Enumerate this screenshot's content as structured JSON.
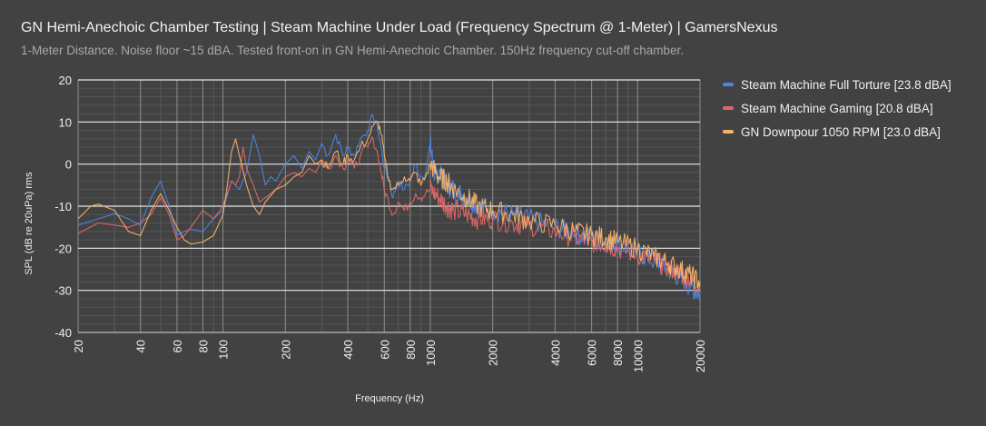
{
  "header": {
    "title": "GN Hemi-Anechoic Chamber Testing | Steam Machine Under Load (Frequency Spectrum @ 1-Meter) | GamersNexus",
    "subtitle": "1-Meter Distance. Noise floor ~15 dBA. Tested front-on in GN Hemi-Anechoic Chamber. 150Hz frequency cut-off chamber."
  },
  "chart_data": {
    "type": "line",
    "title": "GN Hemi-Anechoic Chamber Testing | Steam Machine Under Load (Frequency Spectrum @ 1-Meter) | GamersNexus",
    "subtitle": "1-Meter Distance. Noise floor ~15 dBA. Tested front-on in GN Hemi-Anechoic Chamber. 150Hz frequency cut-off chamber.",
    "xlabel": "Frequency (Hz)",
    "ylabel": "SPL (dB re 20uPa) rms",
    "x_scale": "log",
    "xlim": [
      20,
      20000
    ],
    "ylim": [
      -40,
      20
    ],
    "x_ticks": [
      20,
      40,
      60,
      80,
      100,
      200,
      400,
      600,
      800,
      1000,
      2000,
      4000,
      6000,
      8000,
      10000,
      20000
    ],
    "y_ticks": [
      20,
      10,
      0,
      -10,
      -20,
      -30,
      -40
    ],
    "grid": true,
    "legend_position": "right",
    "series": [
      {
        "name": "Steam Machine Full Torture [23.8 dBA]",
        "color": "#4a86e8",
        "points": [
          [
            20,
            -14.5
          ],
          [
            25,
            -13
          ],
          [
            30,
            -11.8
          ],
          [
            35,
            -13
          ],
          [
            40,
            -14.5
          ],
          [
            45,
            -8
          ],
          [
            50,
            -4
          ],
          [
            55,
            -10
          ],
          [
            60,
            -17
          ],
          [
            65,
            -16
          ],
          [
            70,
            -15.5
          ],
          [
            80,
            -16
          ],
          [
            90,
            -13
          ],
          [
            100,
            -11
          ],
          [
            110,
            -4
          ],
          [
            120,
            -6
          ],
          [
            130,
            -2
          ],
          [
            140,
            7
          ],
          [
            150,
            2
          ],
          [
            160,
            -5
          ],
          [
            170,
            -3
          ],
          [
            180,
            -4
          ],
          [
            200,
            0
          ],
          [
            220,
            2
          ],
          [
            240,
            -1
          ],
          [
            260,
            3
          ],
          [
            280,
            1
          ],
          [
            300,
            5
          ],
          [
            320,
            2
          ],
          [
            350,
            7
          ],
          [
            380,
            2
          ],
          [
            400,
            4
          ],
          [
            430,
            2
          ],
          [
            460,
            6
          ],
          [
            500,
            8
          ],
          [
            530,
            11.5
          ],
          [
            560,
            8
          ],
          [
            580,
            4
          ],
          [
            600,
            -1
          ],
          [
            630,
            -3
          ],
          [
            660,
            -8
          ],
          [
            700,
            -4
          ],
          [
            750,
            -6
          ],
          [
            800,
            -4
          ],
          [
            850,
            0
          ],
          [
            900,
            -3
          ],
          [
            950,
            -2
          ],
          [
            1000,
            5
          ],
          [
            1050,
            -3
          ],
          [
            1100,
            -2
          ],
          [
            1200,
            -5
          ],
          [
            1300,
            -6
          ],
          [
            1500,
            -8
          ],
          [
            1700,
            -10
          ],
          [
            2000,
            -11
          ],
          [
            2500,
            -12
          ],
          [
            3000,
            -13
          ],
          [
            4000,
            -15
          ],
          [
            5000,
            -16.5
          ],
          [
            6000,
            -17.5
          ],
          [
            7000,
            -18.5
          ],
          [
            8000,
            -19
          ],
          [
            10000,
            -21
          ],
          [
            12000,
            -23
          ],
          [
            14000,
            -25
          ],
          [
            16000,
            -27
          ],
          [
            18000,
            -29
          ],
          [
            20000,
            -31
          ]
        ]
      },
      {
        "name": "Steam Machine Gaming [20.8 dBA]",
        "color": "#e06666",
        "points": [
          [
            20,
            -16.5
          ],
          [
            25,
            -14
          ],
          [
            30,
            -14.5
          ],
          [
            35,
            -15
          ],
          [
            40,
            -14
          ],
          [
            45,
            -12
          ],
          [
            50,
            -8
          ],
          [
            55,
            -12
          ],
          [
            60,
            -18
          ],
          [
            65,
            -17
          ],
          [
            70,
            -15
          ],
          [
            80,
            -11
          ],
          [
            90,
            -13
          ],
          [
            100,
            -10
          ],
          [
            110,
            -4
          ],
          [
            115,
            -5
          ],
          [
            120,
            -3
          ],
          [
            125,
            4
          ],
          [
            130,
            -1
          ],
          [
            140,
            -5
          ],
          [
            150,
            -9
          ],
          [
            160,
            -8
          ],
          [
            180,
            -6
          ],
          [
            200,
            -3
          ],
          [
            220,
            -2
          ],
          [
            240,
            -3
          ],
          [
            260,
            -1
          ],
          [
            280,
            -2
          ],
          [
            300,
            1
          ],
          [
            320,
            -1
          ],
          [
            350,
            2
          ],
          [
            380,
            -1
          ],
          [
            400,
            1
          ],
          [
            430,
            -1
          ],
          [
            460,
            2
          ],
          [
            500,
            4
          ],
          [
            530,
            6
          ],
          [
            560,
            2
          ],
          [
            580,
            -2
          ],
          [
            600,
            -6
          ],
          [
            630,
            -9
          ],
          [
            660,
            -12
          ],
          [
            700,
            -9
          ],
          [
            750,
            -11
          ],
          [
            800,
            -9
          ],
          [
            850,
            -7
          ],
          [
            900,
            -8
          ],
          [
            950,
            -7
          ],
          [
            1000,
            -6
          ],
          [
            1100,
            -8
          ],
          [
            1200,
            -10
          ],
          [
            1300,
            -11
          ],
          [
            1500,
            -12
          ],
          [
            1700,
            -13
          ],
          [
            2000,
            -13
          ],
          [
            2500,
            -14
          ],
          [
            3000,
            -14.5
          ],
          [
            4000,
            -16
          ],
          [
            5000,
            -17.5
          ],
          [
            6000,
            -18.5
          ],
          [
            7000,
            -19
          ],
          [
            8000,
            -20
          ],
          [
            10000,
            -21.5
          ],
          [
            12000,
            -23
          ],
          [
            14000,
            -24.5
          ],
          [
            16000,
            -26
          ],
          [
            18000,
            -27.5
          ],
          [
            20000,
            -29
          ]
        ]
      },
      {
        "name": "GN Downpour 1050 RPM [23.0 dBA]",
        "color": "#f6b26b",
        "points": [
          [
            20,
            -13
          ],
          [
            23,
            -10
          ],
          [
            25,
            -9.5
          ],
          [
            30,
            -11
          ],
          [
            35,
            -16
          ],
          [
            40,
            -17
          ],
          [
            45,
            -11
          ],
          [
            50,
            -7
          ],
          [
            55,
            -11
          ],
          [
            60,
            -15
          ],
          [
            65,
            -18
          ],
          [
            70,
            -19
          ],
          [
            80,
            -18.5
          ],
          [
            90,
            -17
          ],
          [
            100,
            -12
          ],
          [
            105,
            -5
          ],
          [
            110,
            3
          ],
          [
            115,
            6
          ],
          [
            120,
            2
          ],
          [
            130,
            -5
          ],
          [
            140,
            -10
          ],
          [
            150,
            -12
          ],
          [
            160,
            -9
          ],
          [
            180,
            -6
          ],
          [
            200,
            -5
          ],
          [
            220,
            -3
          ],
          [
            240,
            -2
          ],
          [
            260,
            2
          ],
          [
            280,
            0
          ],
          [
            300,
            1
          ],
          [
            320,
            -1
          ],
          [
            350,
            3
          ],
          [
            380,
            0
          ],
          [
            400,
            2
          ],
          [
            430,
            1
          ],
          [
            460,
            4
          ],
          [
            500,
            6
          ],
          [
            530,
            9
          ],
          [
            560,
            10
          ],
          [
            580,
            7
          ],
          [
            600,
            2
          ],
          [
            630,
            -4
          ],
          [
            660,
            -6
          ],
          [
            700,
            -5
          ],
          [
            750,
            -3
          ],
          [
            800,
            -4
          ],
          [
            850,
            -2
          ],
          [
            900,
            -5
          ],
          [
            950,
            -3
          ],
          [
            1000,
            0
          ],
          [
            1100,
            -3
          ],
          [
            1200,
            -4
          ],
          [
            1300,
            -6
          ],
          [
            1500,
            -8
          ],
          [
            1700,
            -10
          ],
          [
            2000,
            -11
          ],
          [
            2500,
            -12
          ],
          [
            3000,
            -13.5
          ],
          [
            4000,
            -14.5
          ],
          [
            5000,
            -16
          ],
          [
            6000,
            -17
          ],
          [
            7000,
            -17.5
          ],
          [
            8000,
            -18.5
          ],
          [
            10000,
            -20
          ],
          [
            12000,
            -22
          ],
          [
            14000,
            -23.5
          ],
          [
            16000,
            -25
          ],
          [
            18000,
            -26.5
          ],
          [
            20000,
            -28
          ]
        ]
      }
    ]
  }
}
